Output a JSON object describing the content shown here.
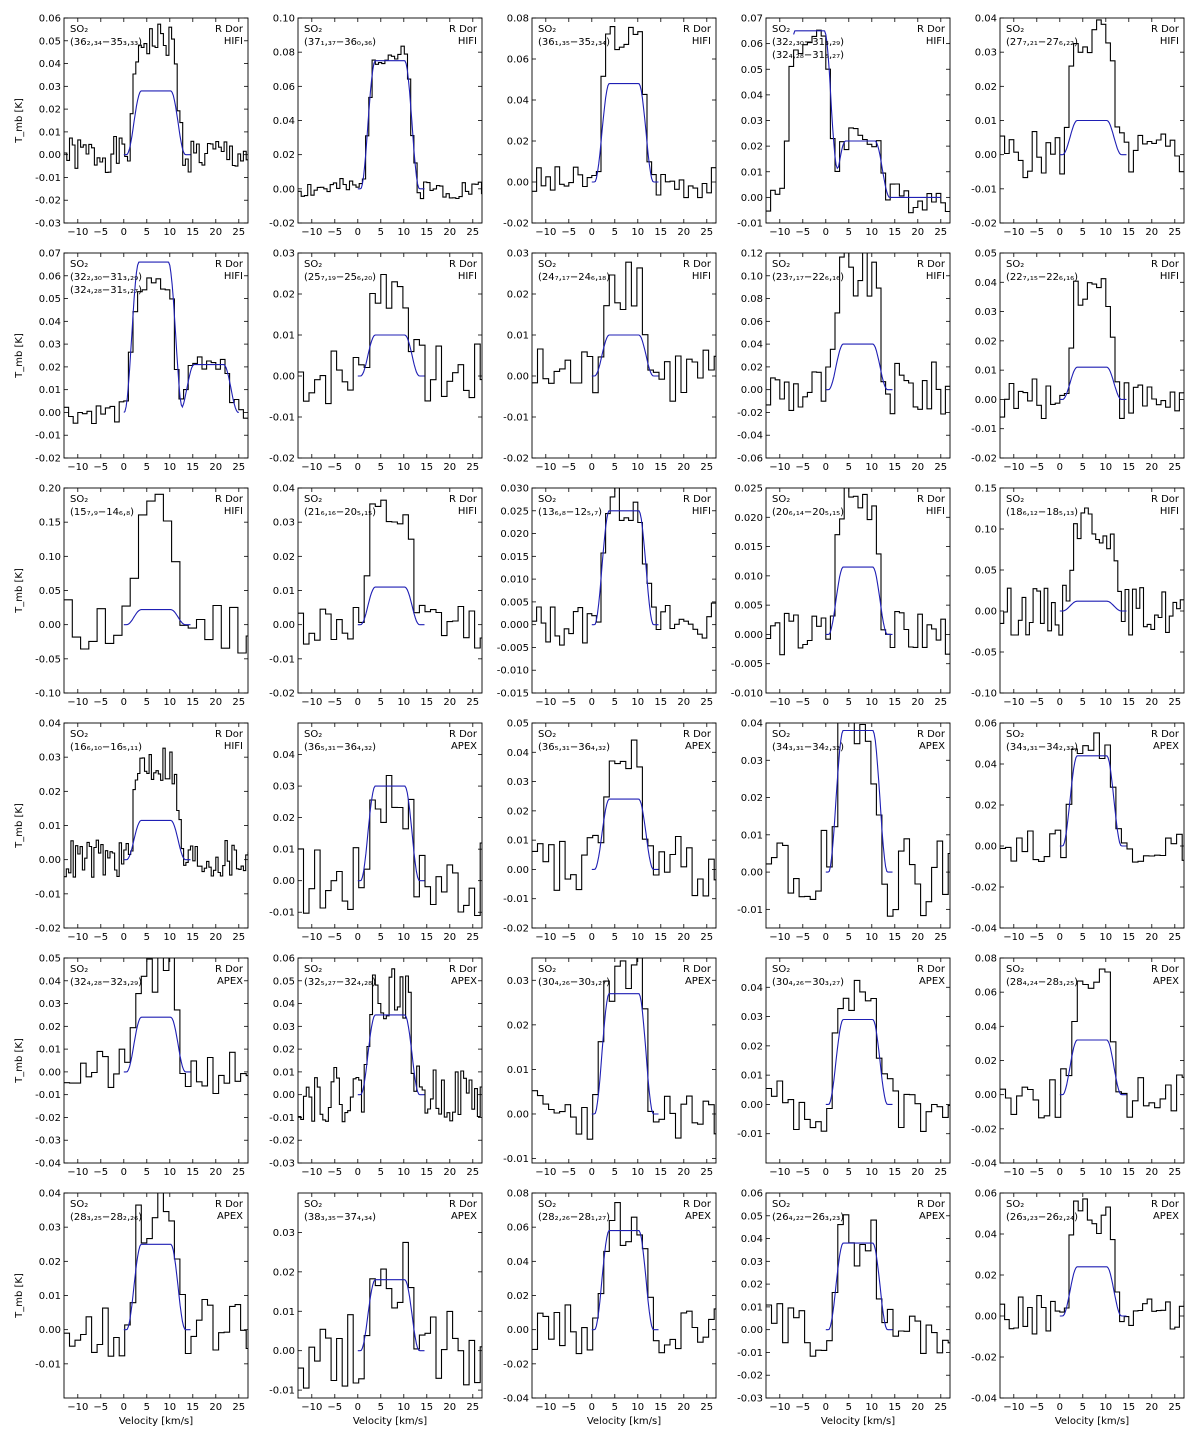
{
  "figure": {
    "star": "R Dor",
    "xlabel": "Velocity [km/s]",
    "ylabel": "T_mb [K]"
  },
  "colors": {
    "observed": "#000000",
    "model": "#1f1fb4",
    "background": "#ffffff"
  },
  "chart_data": [
    {
      "type": "line",
      "molecule": "SO₂",
      "transition": "(36₂,₃₄−35₃,₃₃)",
      "star": "R Dor",
      "instrument": "HIFI",
      "xlim": [
        -13,
        27
      ],
      "ylim": [
        -0.03,
        0.06
      ],
      "yticks": [
        "0.06",
        "0.05",
        "0.04",
        "0.03",
        "0.02",
        "0.01",
        "0.00",
        "-0.01",
        "-0.02",
        "-0.03"
      ],
      "model_peak": 0.028,
      "obs_peak": 0.05,
      "obs_step": 0.6,
      "noise": 0.008,
      "seed": 1
    },
    {
      "type": "line",
      "molecule": "SO₂",
      "transition": "(37₁,₃₇−36₀,₃₆)",
      "star": "R Dor",
      "instrument": "HIFI",
      "xlim": [
        -13,
        27
      ],
      "ylim": [
        -0.02,
        0.1
      ],
      "yticks": [
        "0.10",
        "0.08",
        "0.06",
        "0.04",
        "0.02",
        "0.00",
        "-0.02"
      ],
      "model_peak": 0.075,
      "obs_peak": 0.078,
      "obs_step": 0.7,
      "noise": 0.006,
      "seed": 2
    },
    {
      "type": "line",
      "molecule": "SO₂",
      "transition": "(36₁,₃₅−35₂,₃₄)",
      "star": "R Dor",
      "instrument": "HIFI",
      "xlim": [
        -13,
        27
      ],
      "ylim": [
        -0.02,
        0.08
      ],
      "yticks": [
        "0.08",
        "0.06",
        "0.04",
        "0.02",
        "0.00",
        "-0.02"
      ],
      "model_peak": 0.048,
      "obs_peak": 0.07,
      "obs_step": 1.0,
      "noise": 0.008,
      "seed": 3
    },
    {
      "type": "line",
      "molecule": "SO₂",
      "transition": "(32₂,₃₀−31₃,₂₉)",
      "transition2": "(32₄,₂₈−31₅,₂₇)",
      "star": "R Dor",
      "instrument": "HIFI",
      "xlim": [
        -13,
        27
      ],
      "ylim": [
        -0.01,
        0.07
      ],
      "yticks": [
        "0.07",
        "0.06",
        "0.05",
        "0.04",
        "0.03",
        "0.02",
        "0.01",
        "0.00",
        "-0.01"
      ],
      "model_peak": 0.065,
      "obs_peak": 0.06,
      "second_peak": 0.022,
      "second_center": 7.5,
      "main_center": -3.5,
      "obs_step": 1.0,
      "noise": 0.006,
      "seed": 4
    },
    {
      "type": "line",
      "molecule": "SO₂",
      "transition": "(27₇,₂₁−27₆,₂₂)",
      "star": "R Dor",
      "instrument": "HIFI",
      "xlim": [
        -13,
        27
      ],
      "ylim": [
        -0.02,
        0.04
      ],
      "yticks": [
        "0.04",
        "0.03",
        "0.02",
        "0.01",
        "0.00",
        "-0.01",
        "-0.02"
      ],
      "model_peak": 0.01,
      "obs_peak": 0.034,
      "obs_step": 1.0,
      "noise": 0.007,
      "seed": 5
    },
    {
      "type": "line",
      "molecule": "SO₂",
      "transition": "(32₂,₃₀−31₃,₂₉)",
      "transition2": "(32₄,₂₈−31₅,₂₇)",
      "star": "R Dor",
      "instrument": "HIFI",
      "xlim": [
        -13,
        27
      ],
      "ylim": [
        -0.02,
        0.07
      ],
      "yticks": [
        "0.07",
        "0.06",
        "0.05",
        "0.04",
        "0.03",
        "0.02",
        "0.01",
        "0.00",
        "-0.01",
        "-0.02"
      ],
      "model_peak": 0.066,
      "obs_peak": 0.055,
      "second_peak": 0.021,
      "second_center": 18.5,
      "main_center": 6.5,
      "obs_step": 1.0,
      "noise": 0.005,
      "seed": 6
    },
    {
      "type": "line",
      "molecule": "SO₂",
      "transition": "(25₇,₁₉−25₆,₂₀)",
      "star": "R Dor",
      "instrument": "HIFI",
      "xlim": [
        -13,
        27
      ],
      "ylim": [
        -0.02,
        0.03
      ],
      "yticks": [
        "0.03",
        "0.02",
        "0.01",
        "0.00",
        "-0.01",
        "-0.02"
      ],
      "model_peak": 0.01,
      "obs_peak": 0.022,
      "obs_step": 1.2,
      "noise": 0.008,
      "seed": 7
    },
    {
      "type": "line",
      "molecule": "SO₂",
      "transition": "(24₇,₁₇−24₆,₁₈)",
      "star": "R Dor",
      "instrument": "HIFI",
      "xlim": [
        -13,
        27
      ],
      "ylim": [
        -0.02,
        0.03
      ],
      "yticks": [
        "0.03",
        "0.02",
        "0.01",
        "0.00",
        "-0.01",
        "-0.02"
      ],
      "model_peak": 0.01,
      "obs_peak": 0.024,
      "obs_step": 1.2,
      "noise": 0.008,
      "seed": 8
    },
    {
      "type": "line",
      "molecule": "SO₂",
      "transition": "(23₇,₁₇−22₆,₁₆)",
      "star": "R Dor",
      "instrument": "HIFI",
      "xlim": [
        -13,
        27
      ],
      "ylim": [
        -0.06,
        0.12
      ],
      "yticks": [
        "0.12",
        "0.10",
        "0.08",
        "0.06",
        "0.04",
        "0.02",
        "0.00",
        "-0.02",
        "-0.04",
        "-0.06"
      ],
      "model_peak": 0.04,
      "obs_peak": 0.1,
      "obs_step": 1.0,
      "noise": 0.025,
      "seed": 9
    },
    {
      "type": "line",
      "molecule": "SO₂",
      "transition": "(22₇,₁₅−22₆,₁₆)",
      "star": "R Dor",
      "instrument": "HIFI",
      "xlim": [
        -13,
        27
      ],
      "ylim": [
        -0.02,
        0.05
      ],
      "yticks": [
        "0.05",
        "0.04",
        "0.03",
        "0.02",
        "0.01",
        "0.00",
        "-0.01",
        "-0.02"
      ],
      "model_peak": 0.011,
      "obs_peak": 0.038,
      "obs_step": 1.0,
      "noise": 0.007,
      "seed": 10
    },
    {
      "type": "line",
      "molecule": "SO₂",
      "transition": "(15₇,₉−14₆,₈)",
      "star": "R Dor",
      "instrument": "HIFI",
      "xlim": [
        -13,
        27
      ],
      "ylim": [
        -0.1,
        0.2
      ],
      "yticks": [
        "0.20",
        "0.15",
        "0.10",
        "0.05",
        "0.00",
        "-0.05",
        "-0.10"
      ],
      "model_peak": 0.022,
      "obs_peak": 0.15,
      "obs_step": 1.8,
      "noise": 0.045,
      "seed": 11
    },
    {
      "type": "line",
      "molecule": "SO₂",
      "transition": "(21₆,₁₆−20₅,₁₅)",
      "star": "R Dor",
      "instrument": "HIFI",
      "xlim": [
        -13,
        27
      ],
      "ylim": [
        -0.02,
        0.04
      ],
      "yticks": [
        "0.04",
        "0.03",
        "0.02",
        "0.01",
        "0.00",
        "-0.01",
        "-0.02"
      ],
      "model_peak": 0.011,
      "obs_peak": 0.031,
      "obs_step": 1.2,
      "noise": 0.007,
      "seed": 12
    },
    {
      "type": "line",
      "molecule": "SO₂",
      "transition": "(13₆,₈−12₅,₇)",
      "star": "R Dor",
      "instrument": "HIFI",
      "xlim": [
        -13,
        27
      ],
      "ylim": [
        -0.015,
        0.03
      ],
      "yticks": [
        "0.030",
        "0.025",
        "0.020",
        "0.015",
        "0.010",
        "0.005",
        "0.000",
        "-0.005",
        "-0.010",
        "-0.015"
      ],
      "model_peak": 0.025,
      "obs_peak": 0.027,
      "obs_step": 1.0,
      "noise": 0.005,
      "seed": 13
    },
    {
      "type": "line",
      "molecule": "SO₂",
      "transition": "(20₆,₁₄−20₅,₁₅)",
      "star": "R Dor",
      "instrument": "HIFI",
      "xlim": [
        -13,
        27
      ],
      "ylim": [
        -0.01,
        0.025
      ],
      "yticks": [
        "0.025",
        "0.020",
        "0.015",
        "0.010",
        "0.005",
        "0.000",
        "-0.005",
        "-0.010"
      ],
      "model_peak": 0.0115,
      "obs_peak": 0.023,
      "obs_step": 1.0,
      "noise": 0.004,
      "seed": 14
    },
    {
      "type": "line",
      "molecule": "SO₂",
      "transition": "(18₆,₁₂−18₅,₁₃)",
      "star": "R Dor",
      "instrument": "HIFI",
      "xlim": [
        -13,
        27
      ],
      "ylim": [
        -0.1,
        0.15
      ],
      "yticks": [
        "0.15",
        "0.10",
        "0.05",
        "0.00",
        "-0.05",
        "-0.10"
      ],
      "model_peak": 0.012,
      "obs_peak": 0.11,
      "obs_step": 0.8,
      "noise": 0.03,
      "seed": 15
    },
    {
      "type": "line",
      "molecule": "SO₂",
      "transition": "(16₆,₁₀−16₅,₁₁)",
      "star": "R Dor",
      "instrument": "HIFI",
      "xlim": [
        -13,
        27
      ],
      "ylim": [
        -0.02,
        0.04
      ],
      "yticks": [
        "0.04",
        "0.03",
        "0.02",
        "0.01",
        "0.00",
        "-0.01",
        "-0.02"
      ],
      "model_peak": 0.0115,
      "obs_peak": 0.028,
      "obs_step": 0.5,
      "noise": 0.006,
      "seed": 16
    },
    {
      "type": "line",
      "molecule": "SO₂",
      "transition": "(36₅,₃₁−36₄,₃₂)",
      "star": "R Dor",
      "instrument": "APEX",
      "xlim": [
        -13,
        27
      ],
      "ylim": [
        -0.015,
        0.05
      ],
      "yticks": [
        "0.04",
        "0.03",
        "0.02",
        "0.01",
        "0.00",
        "-0.01"
      ],
      "model_peak": 0.03,
      "obs_peak": 0.028,
      "obs_step": 1.2,
      "noise": 0.012,
      "seed": 17
    },
    {
      "type": "line",
      "molecule": "SO₂",
      "transition": "(36₅,₃₁−36₄,₃₂)",
      "star": "R Dor",
      "instrument": "APEX",
      "xlim": [
        -13,
        27
      ],
      "ylim": [
        -0.02,
        0.05
      ],
      "yticks": [
        "0.05",
        "0.04",
        "0.03",
        "0.02",
        "0.01",
        "0.00",
        "-0.01",
        "-0.02"
      ],
      "model_peak": 0.024,
      "obs_peak": 0.035,
      "obs_step": 1.2,
      "noise": 0.012,
      "seed": 18
    },
    {
      "type": "line",
      "molecule": "SO₂",
      "transition": "(34₃,₃₁−34₂,₃₂)",
      "star": "R Dor",
      "instrument": "APEX",
      "xlim": [
        -13,
        27
      ],
      "ylim": [
        -0.015,
        0.04
      ],
      "yticks": [
        "0.04",
        "0.03",
        "0.02",
        "0.01",
        "0.00",
        "-0.01"
      ],
      "model_peak": 0.038,
      "obs_peak": 0.036,
      "obs_step": 1.2,
      "noise": 0.012,
      "seed": 19
    },
    {
      "type": "line",
      "molecule": "SO₂",
      "transition": "(34₃,₃₁−34₂,₃₂)",
      "star": "R Dor",
      "instrument": "APEX",
      "xlim": [
        -13,
        27
      ],
      "ylim": [
        -0.04,
        0.06
      ],
      "yticks": [
        "0.06",
        "0.04",
        "0.02",
        "0.00",
        "-0.02",
        "-0.04"
      ],
      "model_peak": 0.044,
      "obs_peak": 0.05,
      "obs_step": 1.2,
      "noise": 0.008,
      "seed": 20
    },
    {
      "type": "line",
      "molecule": "SO₂",
      "transition": "(32₄,₂₈−32₃,₂₉)",
      "star": "R Dor",
      "instrument": "APEX",
      "xlim": [
        -13,
        27
      ],
      "ylim": [
        -0.04,
        0.05
      ],
      "yticks": [
        "0.05",
        "0.04",
        "0.03",
        "0.02",
        "0.01",
        "0.00",
        "-0.01",
        "-0.02",
        "-0.03",
        "-0.04"
      ],
      "model_peak": 0.024,
      "obs_peak": 0.042,
      "obs_step": 1.2,
      "noise": 0.01,
      "seed": 21
    },
    {
      "type": "line",
      "molecule": "SO₂",
      "transition": "(32₅,₂₇−32₄,₂₈)",
      "star": "R Dor",
      "instrument": "APEX",
      "xlim": [
        -13,
        27
      ],
      "ylim": [
        -0.03,
        0.06
      ],
      "yticks": [
        "0.06",
        "0.05",
        "0.04",
        "0.03",
        "0.02",
        "0.01",
        "0.00",
        "-0.01",
        "-0.02",
        "-0.03"
      ],
      "model_peak": 0.035,
      "obs_peak": 0.045,
      "obs_step": 0.6,
      "noise": 0.012,
      "seed": 22
    },
    {
      "type": "line",
      "molecule": "SO₂",
      "transition": "(30₄,₂₆−30₃,₂₇)",
      "star": "R Dor",
      "instrument": "APEX",
      "xlim": [
        -13,
        27
      ],
      "ylim": [
        -0.011,
        0.035
      ],
      "yticks": [
        "0.03",
        "0.02",
        "0.01",
        "0.00",
        "-0.01"
      ],
      "model_peak": 0.027,
      "obs_peak": 0.03,
      "obs_step": 1.2,
      "noise": 0.006,
      "seed": 23
    },
    {
      "type": "line",
      "molecule": "SO₂",
      "transition": "(30₄,₂₆−30₃,₂₇)",
      "star": "R Dor",
      "instrument": "APEX",
      "xlim": [
        -13,
        27
      ],
      "ylim": [
        -0.02,
        0.05
      ],
      "yticks": [
        "0.04",
        "0.03",
        "0.02",
        "0.01",
        "0.00",
        "-0.01"
      ],
      "model_peak": 0.029,
      "obs_peak": 0.038,
      "obs_step": 1.2,
      "noise": 0.01,
      "seed": 24
    },
    {
      "type": "line",
      "molecule": "SO₂",
      "transition": "(28₄,₂₄−28₃,₂₅)",
      "star": "R Dor",
      "instrument": "APEX",
      "xlim": [
        -13,
        27
      ],
      "ylim": [
        -0.04,
        0.08
      ],
      "yticks": [
        "0.08",
        "0.06",
        "0.04",
        "0.02",
        "0.00",
        "-0.02",
        "-0.04"
      ],
      "model_peak": 0.032,
      "obs_peak": 0.06,
      "obs_step": 1.2,
      "noise": 0.015,
      "seed": 25
    },
    {
      "type": "line",
      "molecule": "SO₂",
      "transition": "(28₃,₂₅−28₂,₂₆)",
      "star": "R Dor",
      "instrument": "APEX",
      "xlim": [
        -13,
        27
      ],
      "ylim": [
        -0.02,
        0.04
      ],
      "yticks": [
        "0.04",
        "0.03",
        "0.02",
        "0.01",
        "0.00",
        "-0.01"
      ],
      "model_peak": 0.025,
      "obs_peak": 0.034,
      "obs_step": 1.2,
      "noise": 0.009,
      "seed": 26
    },
    {
      "type": "line",
      "molecule": "SO₂",
      "transition": "(38₃,₃₅−37₄,₃₄)",
      "star": "R Dor",
      "instrument": "APEX",
      "xlim": [
        -13,
        27
      ],
      "ylim": [
        -0.012,
        0.04
      ],
      "yticks": [
        "0.03",
        "0.02",
        "0.01",
        "0.00",
        "-0.01"
      ],
      "model_peak": 0.018,
      "obs_peak": 0.02,
      "obs_step": 1.2,
      "noise": 0.01,
      "seed": 27
    },
    {
      "type": "line",
      "molecule": "SO₂",
      "transition": "(28₂,₂₆−28₁,₂₇)",
      "star": "R Dor",
      "instrument": "APEX",
      "xlim": [
        -13,
        27
      ],
      "ylim": [
        -0.04,
        0.08
      ],
      "yticks": [
        "0.08",
        "0.06",
        "0.04",
        "0.02",
        "0.00",
        "-0.02",
        "-0.04"
      ],
      "model_peak": 0.058,
      "obs_peak": 0.06,
      "obs_step": 1.2,
      "noise": 0.015,
      "seed": 28
    },
    {
      "type": "line",
      "molecule": "SO₂",
      "transition": "(26₄,₂₂−26₃,₂₃)",
      "star": "R Dor",
      "instrument": "APEX",
      "xlim": [
        -13,
        27
      ],
      "ylim": [
        -0.03,
        0.06
      ],
      "yticks": [
        "0.06",
        "0.05",
        "0.04",
        "0.03",
        "0.02",
        "0.01",
        "0.00",
        "-0.01",
        "-0.02",
        "-0.03"
      ],
      "model_peak": 0.038,
      "obs_peak": 0.04,
      "obs_step": 1.2,
      "noise": 0.012,
      "seed": 29
    },
    {
      "type": "line",
      "molecule": "SO₂",
      "transition": "(26₃,₂₃−26₂,₂₄)",
      "star": "R Dor",
      "instrument": "APEX",
      "xlim": [
        -13,
        27
      ],
      "ylim": [
        -0.04,
        0.06
      ],
      "yticks": [
        "0.06",
        "0.04",
        "0.02",
        "0.00",
        "-0.02",
        "-0.04"
      ],
      "model_peak": 0.024,
      "obs_peak": 0.05,
      "obs_step": 1.0,
      "noise": 0.01,
      "seed": 30
    }
  ]
}
